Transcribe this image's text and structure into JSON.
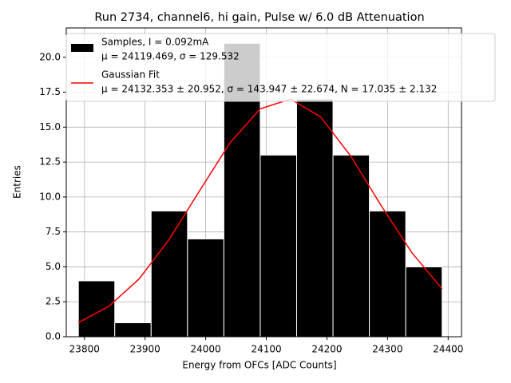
{
  "chart_data": {
    "type": "histogram",
    "title": "Run 2734, channel6, hi gain, Pulse w/ 6.0 dB Attenuation",
    "xlabel": "Energy from OFCs [ADC Counts]",
    "ylabel": "Entries",
    "xlim": [
      23770,
      24422
    ],
    "ylim": [
      0,
      22.1
    ],
    "xticks": [
      23800,
      23900,
      24000,
      24100,
      24200,
      24300,
      24400
    ],
    "yticks": [
      {
        "value": 0,
        "label": "0.0"
      },
      2.5,
      {
        "value": 5,
        "label": "5.0"
      },
      7.5,
      {
        "value": 10,
        "label": "10.0"
      },
      12.5,
      {
        "value": 15,
        "label": "15.0"
      },
      17.5,
      {
        "value": 20,
        "label": "20.0"
      }
    ],
    "grid": true,
    "legend": "upper left",
    "series": [
      {
        "name": "Samples, I = 0.092mA",
        "detail": "μ = 24119.469, σ = 129.532",
        "color": "#000000",
        "bins": [
          23790,
          23850,
          23910,
          23970,
          24030,
          24090,
          24150,
          24210,
          24270,
          24330,
          24390
        ],
        "values": [
          4,
          1,
          9,
          7,
          21,
          13,
          17,
          13,
          9,
          5
        ]
      },
      {
        "name": "Gaussian Fit",
        "detail": "μ = 24132.353 ± 20.952, σ = 143.947 ± 22.674, N = 17.035 ± 2.132",
        "color": "#ff0000",
        "x": [
          23790,
          23840,
          23890,
          23940,
          23990,
          24040,
          24090,
          24140,
          24190,
          24240,
          24290,
          24340,
          24390
        ],
        "values": [
          1.01,
          2.17,
          4.13,
          6.98,
          10.45,
          13.87,
          16.31,
          17.01,
          15.72,
          12.88,
          9.35,
          6.02,
          3.43
        ]
      }
    ]
  }
}
